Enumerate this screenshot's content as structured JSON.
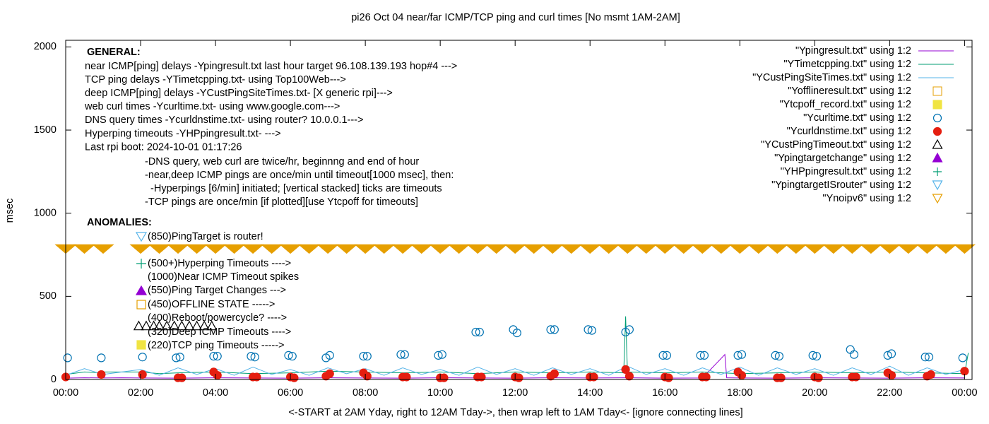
{
  "chart_data": {
    "type": "scatter",
    "title": "pi26 Oct 04  near/far ICMP/TCP ping and curl times [No msmt 1AM-2AM]",
    "x_label": "<-START at 2AM Yday, right to 12AM Tday->, then wrap left to 1AM Tday<- [ignore connecting lines]",
    "y_label": "msec",
    "xlim": [
      0,
      24.2
    ],
    "ylim": [
      0,
      2040
    ],
    "xticks": [
      {
        "value": 0,
        "label": "00:00"
      },
      {
        "value": 2,
        "label": "02:00"
      },
      {
        "value": 4,
        "label": "04:00"
      },
      {
        "value": 6,
        "label": "06:00"
      },
      {
        "value": 8,
        "label": "08:00"
      },
      {
        "value": 10,
        "label": "10:00"
      },
      {
        "value": 12,
        "label": "12:00"
      },
      {
        "value": 14,
        "label": "14:00"
      },
      {
        "value": 16,
        "label": "16:00"
      },
      {
        "value": 18,
        "label": "18:00"
      },
      {
        "value": 20,
        "label": "20:00"
      },
      {
        "value": 22,
        "label": "22:00"
      },
      {
        "value": 24,
        "label": "00:00"
      }
    ],
    "yticks": [
      0,
      500,
      1000,
      1500,
      2000
    ],
    "general_heading": "GENERAL:",
    "general_lines": [
      "near ICMP[ping] delays -Ypingresult.txt last hour target 96.108.139.193 hop#4 --->",
      "TCP ping delays -YTimetcpping.txt- using Top100Web--->",
      "deep ICMP[ping] delays -YCustPingSiteTimes.txt- [X generic rpi]--->",
      "web curl times -Ycurltime.txt- using www.google.com--->",
      "DNS query times -Ycurldnstime.txt- using router? 10.0.0.1--->",
      "Hyperping timeouts -YHPpingresult.txt- --->",
      "Last rpi boot: 2024-10-01 01:17:26"
    ],
    "general_notes": [
      "-DNS query, web curl are twice/hr, beginnng and end of hour",
      "-near,deep ICMP pings are once/min until timeout[1000 msec], then:",
      "  -Hyperpings [6/min] initiated; [vertical stacked] ticks are timeouts",
      "-TCP pings are once/min [if plotted][use Ytcpoff for timeouts]"
    ],
    "anomalies_heading": "ANOMALIES:",
    "anomalies": [
      "(850)PingTarget is router!",
      "(500+)Hyperping Timeouts ---->",
      "(1000)Near ICMP Timeout spikes",
      "(550)Ping Target Changes --->",
      "(450)OFFLINE STATE ----->",
      "(400)Reboot/powercycle? ---->",
      "(320)Deep ICMP Timeouts ---->",
      "(220)TCP ping Timeouts ----->"
    ],
    "series": [
      {
        "name": "\"Ypingresult.txt\" using 1:2",
        "color": "#9400d3",
        "marker": "line",
        "x": [
          0,
          0.5,
          1,
          1.5,
          2,
          3,
          4,
          5,
          6,
          7,
          8,
          9,
          10,
          11,
          12,
          13,
          14,
          15,
          16,
          17,
          17.6,
          17.65,
          18,
          19,
          20,
          21,
          22,
          23,
          24
        ],
        "values": [
          8,
          10,
          9,
          10,
          9,
          8,
          10,
          9,
          8,
          10,
          9,
          8,
          10,
          9,
          8,
          10,
          9,
          10,
          8,
          9,
          150,
          10,
          9,
          8,
          10,
          9,
          8,
          10,
          9
        ]
      },
      {
        "name": "\"YTimetcpping.txt\" using 1:2",
        "color": "#009e73",
        "marker": "line",
        "x": [
          0,
          0.5,
          1,
          1.05,
          2,
          2.5,
          3,
          4,
          5,
          6,
          7,
          8,
          9,
          10,
          11,
          12,
          13,
          14,
          14.9,
          14.95,
          15,
          16,
          17,
          18,
          19,
          20,
          21,
          22,
          23,
          24,
          24.1
        ],
        "values": [
          30,
          45,
          40,
          45,
          45,
          35,
          40,
          45,
          35,
          40,
          50,
          45,
          40,
          45,
          35,
          45,
          40,
          45,
          40,
          380,
          45,
          40,
          45,
          35,
          40,
          45,
          40,
          45,
          40,
          35,
          160
        ]
      },
      {
        "name": "\"YCustPingSiteTimes.txt\" using 1:2",
        "color": "#56b4e9",
        "marker": "line",
        "x": [
          0,
          0.5,
          1,
          2,
          2.5,
          3,
          3.5,
          4,
          4.5,
          5,
          5.5,
          6,
          6.5,
          7,
          7.5,
          8,
          8.5,
          9,
          9.5,
          10,
          10.5,
          11,
          11.5,
          12,
          12.5,
          13,
          13.5,
          14,
          14.5,
          15,
          15.5,
          16,
          16.5,
          17,
          17.5,
          18,
          18.5,
          19,
          19.5,
          20,
          20.5,
          21,
          21.5,
          22,
          22.5,
          23,
          23.5,
          24
        ],
        "values": [
          25,
          65,
          30,
          60,
          25,
          70,
          30,
          65,
          25,
          75,
          30,
          60,
          25,
          70,
          35,
          65,
          25,
          70,
          30,
          60,
          25,
          75,
          30,
          65,
          25,
          70,
          30,
          65,
          25,
          80,
          30,
          65,
          25,
          70,
          30,
          75,
          25,
          70,
          30,
          65,
          25,
          70,
          30,
          80,
          25,
          70,
          30,
          60
        ]
      },
      {
        "name": "\"Yofflineresult.txt\" using 1:2",
        "color": "#e69f00",
        "marker": "square-open",
        "x": [],
        "values": []
      },
      {
        "name": "\"Ytcpoff_record.txt\" using 1:2",
        "color": "#f0e442",
        "marker": "square-filled",
        "x": [],
        "values": []
      },
      {
        "name": "\"Ycurltime.txt\" using 1:2",
        "color": "#0072b2",
        "marker": "circle-open",
        "x": [
          0.05,
          0.95,
          2.05,
          2.95,
          3.05,
          3.95,
          4.05,
          4.95,
          5.05,
          5.95,
          6.05,
          6.95,
          7.05,
          7.95,
          8.05,
          8.95,
          9.05,
          9.95,
          10.05,
          10.95,
          11.05,
          11.95,
          12.05,
          12.95,
          13.05,
          13.95,
          14.05,
          14.95,
          15.05,
          15.95,
          16.05,
          16.95,
          17.05,
          17.95,
          18.05,
          18.95,
          19.05,
          19.95,
          20.05,
          20.95,
          21.05,
          21.95,
          22.05,
          22.95,
          23.05,
          23.95
        ],
        "values": [
          130,
          130,
          135,
          130,
          135,
          140,
          140,
          140,
          135,
          145,
          140,
          130,
          145,
          140,
          140,
          150,
          150,
          145,
          150,
          285,
          285,
          300,
          280,
          300,
          300,
          300,
          295,
          285,
          300,
          145,
          145,
          145,
          145,
          145,
          150,
          145,
          140,
          145,
          140,
          180,
          150,
          145,
          155,
          135,
          135,
          130
        ]
      },
      {
        "name": "\"Ycurldnstime.txt\" using 1:2",
        "color": "#e51e10",
        "marker": "circle-filled",
        "x": [
          0,
          0.95,
          2.05,
          3,
          3.1,
          3.95,
          4.05,
          5,
          5.1,
          6,
          6.1,
          6.95,
          7.05,
          7.95,
          8.05,
          9,
          9.1,
          10,
          10.1,
          11,
          11.1,
          12,
          12.1,
          12.95,
          13.05,
          14,
          14.1,
          14.95,
          15.05,
          16,
          16.1,
          17,
          17.1,
          17.95,
          18.05,
          19,
          19.1,
          20,
          20.1,
          21,
          21.1,
          21.95,
          22.05,
          23,
          23.1,
          24
        ],
        "values": [
          15,
          30,
          30,
          10,
          10,
          45,
          25,
          15,
          15,
          15,
          10,
          20,
          35,
          40,
          20,
          15,
          15,
          10,
          10,
          15,
          15,
          15,
          10,
          20,
          35,
          15,
          15,
          60,
          20,
          15,
          10,
          15,
          15,
          45,
          25,
          10,
          10,
          15,
          10,
          15,
          15,
          40,
          25,
          20,
          30,
          50
        ]
      },
      {
        "name": "\"YCustPingTimeout.txt\" using 1:2",
        "color": "#000000",
        "marker": "triangle-up-open",
        "x": [
          1.95,
          2.15,
          2.35,
          2.5,
          2.7,
          2.9,
          3.1,
          3.3,
          3.5,
          3.7,
          3.9
        ],
        "values": [
          320,
          320,
          320,
          320,
          320,
          320,
          320,
          320,
          320,
          320,
          320
        ]
      },
      {
        "name": "\"Ypingtargetchange\" using 1:2",
        "color": "#9400d3",
        "marker": "triangle-up-filled",
        "x": [],
        "values": []
      },
      {
        "name": "\"YHPpingresult.txt\" using 1:2",
        "color": "#009e73",
        "marker": "plus",
        "x": [],
        "values": []
      },
      {
        "name": "\"YpingtargetISrouter\" using 1:2",
        "color": "#56b4e9",
        "marker": "triangle-down-open",
        "x": [],
        "values": []
      },
      {
        "name": "\"Ynoipv6\" using 1:2",
        "color": "#e69f00",
        "marker": "triangle-down-band",
        "x": [
          0,
          0.5,
          1,
          2,
          2.5,
          3,
          3.5,
          4,
          4.5,
          5,
          5.5,
          6,
          6.5,
          7,
          7.5,
          8,
          8.5,
          9,
          9.5,
          10,
          10.5,
          11,
          11.5,
          12,
          12.5,
          13,
          13.5,
          14,
          14.5,
          15,
          15.5,
          16,
          16.5,
          17,
          17.5,
          18,
          18.5,
          19,
          19.5,
          20,
          20.5,
          21,
          21.5,
          22,
          22.5,
          23,
          23.5,
          24
        ],
        "values": [
          785,
          785,
          785,
          785,
          785,
          785,
          785,
          785,
          785,
          785,
          785,
          785,
          785,
          785,
          785,
          785,
          785,
          785,
          785,
          785,
          785,
          785,
          785,
          785,
          785,
          785,
          785,
          785,
          785,
          785,
          785,
          785,
          785,
          785,
          785,
          785,
          785,
          785,
          785,
          785,
          785,
          785,
          785,
          785,
          785,
          785,
          785,
          785
        ]
      }
    ]
  }
}
